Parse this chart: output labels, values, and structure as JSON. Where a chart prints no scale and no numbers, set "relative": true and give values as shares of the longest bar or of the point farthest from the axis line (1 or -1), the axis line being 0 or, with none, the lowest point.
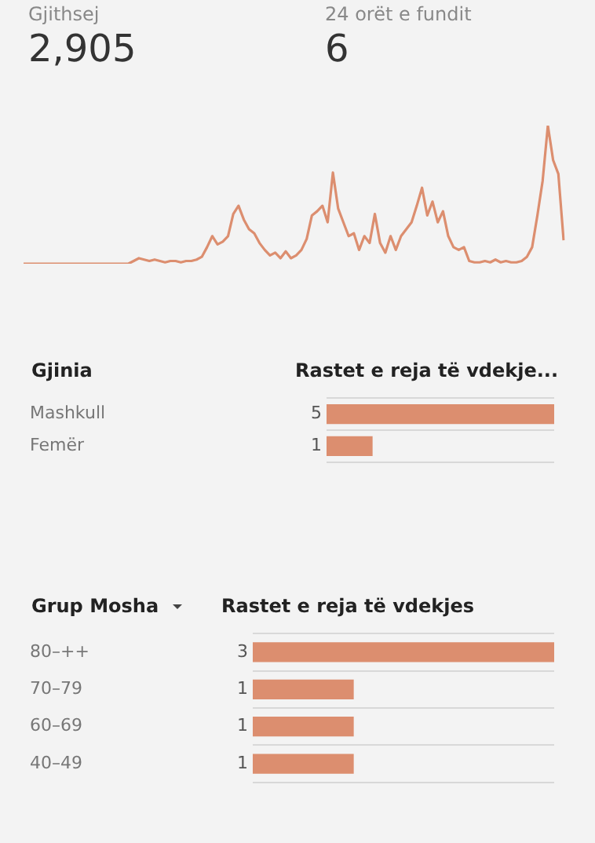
{
  "chart_data": [
    {
      "type": "other",
      "annotations": [
        "Gjithsej",
        "2,905",
        "24 orët e fundit",
        "6"
      ]
    },
    {
      "type": "line",
      "relative": true,
      "color": "#dc8e6f",
      "marker": "none",
      "categories": [
        null,
        null,
        null,
        null,
        null,
        null,
        null,
        null,
        null,
        null,
        null,
        null,
        null,
        null,
        null,
        null,
        null,
        null,
        null,
        null,
        null,
        null,
        null,
        null,
        null,
        null,
        null,
        null,
        null,
        null,
        null,
        null,
        null,
        null,
        null,
        null,
        null,
        null,
        null,
        null,
        null,
        null,
        null,
        null,
        null,
        null,
        null,
        null,
        null,
        null,
        null,
        null,
        null,
        null,
        null,
        null,
        null,
        null,
        null,
        null,
        null,
        null,
        null,
        null,
        null,
        null,
        null,
        null,
        null,
        null,
        null,
        null,
        null,
        null,
        null,
        null,
        null,
        null,
        null,
        null,
        null,
        null,
        null,
        null,
        null,
        null,
        null,
        null,
        null,
        null,
        null,
        null,
        null,
        null,
        null,
        null,
        null,
        null,
        null,
        null,
        null,
        null,
        null,
        null
      ],
      "values": [
        0,
        0,
        0,
        0,
        0,
        0,
        0,
        0,
        0,
        0,
        0,
        0,
        0,
        0,
        0,
        0,
        0,
        0,
        0,
        0,
        0,
        0.02,
        0.04,
        0.03,
        0.02,
        0.03,
        0.02,
        0.01,
        0.02,
        0.02,
        0.01,
        0.02,
        0.02,
        0.03,
        0.05,
        0.12,
        0.2,
        0.14,
        0.16,
        0.2,
        0.36,
        0.42,
        0.32,
        0.25,
        0.22,
        0.15,
        0.1,
        0.06,
        0.08,
        0.04,
        0.09,
        0.04,
        0.06,
        0.1,
        0.18,
        0.35,
        0.38,
        0.42,
        0.3,
        0.66,
        0.4,
        0.3,
        0.2,
        0.22,
        0.1,
        0.2,
        0.15,
        0.36,
        0.15,
        0.08,
        0.2,
        0.1,
        0.2,
        0.25,
        0.3,
        0.42,
        0.55,
        0.35,
        0.45,
        0.3,
        0.38,
        0.2,
        0.12,
        0.1,
        0.12,
        0.02,
        0.01,
        0.01,
        0.02,
        0.01,
        0.03,
        0.01,
        0.02,
        0.01,
        0.01,
        0.02,
        0.05,
        0.12,
        0.35,
        0.6,
        1,
        0.75,
        0.65,
        0.17
      ]
    },
    {
      "type": "bar",
      "orientation": "horizontal",
      "ylabel": "Gjinia",
      "xlabel": "Rastet e reja të vdekje...",
      "categories": [
        "Mashkull",
        "Femër"
      ],
      "values": [
        5,
        1
      ],
      "color": "#dc8e6f",
      "data_labels": true,
      "grid": "y"
    },
    {
      "type": "bar",
      "orientation": "horizontal",
      "ylabel": "Grup Mosha",
      "xlabel": "Rastet e reja të vdekjes",
      "categories": [
        "80–++",
        "70–79",
        "60–69",
        "40–49"
      ],
      "values": [
        3,
        1,
        1,
        1
      ],
      "color": "#dc8e6f",
      "data_labels": true,
      "grid": "y"
    }
  ]
}
